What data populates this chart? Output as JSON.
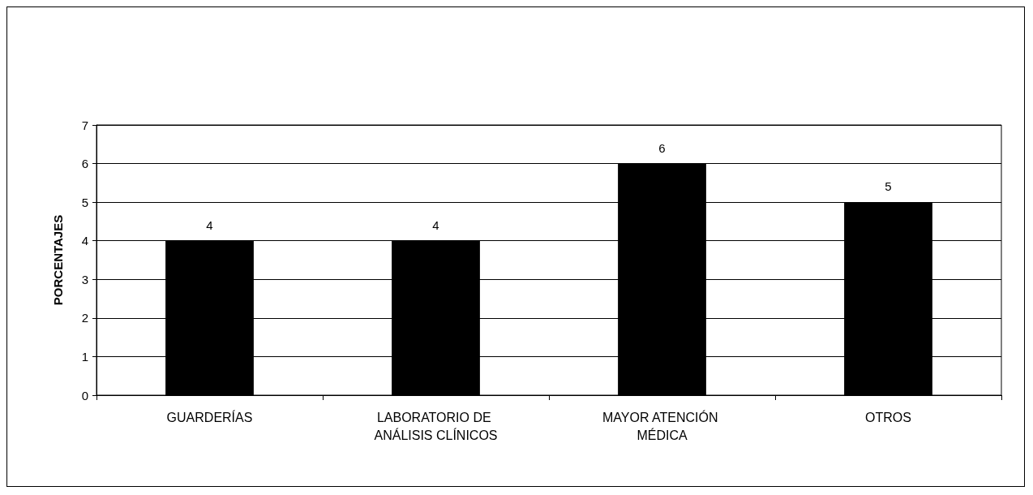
{
  "chart_data": {
    "type": "bar",
    "ylabel": "PORCENTAJES",
    "categories": [
      "GUARDERÍAS",
      "LABORATORIO DE ANÁLISIS CLÍNICOS",
      "MAYOR ATENCIÓN MÉDICA",
      "OTROS"
    ],
    "values": [
      4,
      4,
      6,
      5
    ],
    "color": "#000000",
    "ylim": [
      0,
      7
    ],
    "yticks": [
      0,
      1,
      2,
      3,
      4,
      5,
      6,
      7
    ],
    "grid": "y",
    "data_labels": true
  }
}
